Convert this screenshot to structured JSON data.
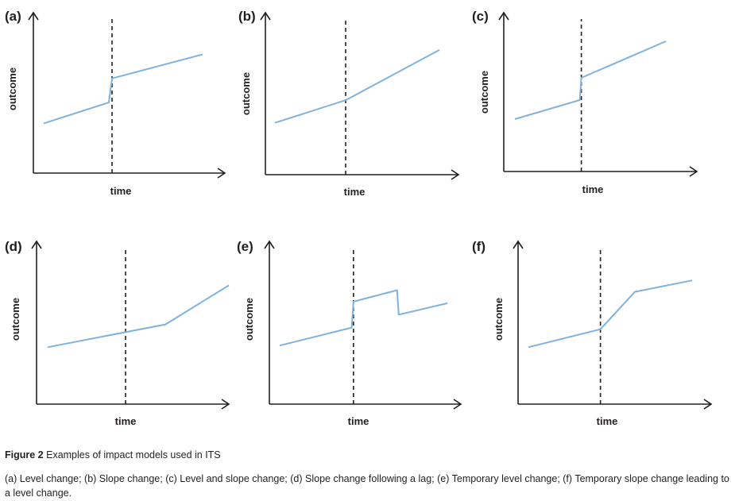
{
  "chart_data": [
    {
      "type": "line",
      "panel_label": "(a)",
      "xlabel": "time",
      "ylabel": "outcome",
      "x": [
        0,
        0.41,
        0.43,
        1
      ],
      "y": [
        0.31,
        0.44,
        0.59,
        0.74
      ],
      "intervention_x": 0.43,
      "xlim": [
        0,
        1
      ],
      "ylim": [
        0,
        1
      ],
      "grid": false
    },
    {
      "type": "line",
      "panel_label": "(b)",
      "xlabel": "time",
      "ylabel": "outcome",
      "x": [
        0,
        0.43,
        1
      ],
      "y": [
        0.32,
        0.46,
        0.77
      ],
      "intervention_x": 0.43,
      "xlim": [
        0,
        1
      ],
      "ylim": [
        0,
        1
      ],
      "grid": false
    },
    {
      "type": "line",
      "panel_label": "(c)",
      "xlabel": "time",
      "ylabel": "outcome",
      "x": [
        0,
        0.43,
        0.44,
        1
      ],
      "y": [
        0.33,
        0.45,
        0.59,
        0.82
      ],
      "intervention_x": 0.44,
      "xlim": [
        0,
        1
      ],
      "ylim": [
        0,
        1
      ],
      "grid": false
    },
    {
      "type": "line",
      "panel_label": "(d)",
      "xlabel": "time",
      "ylabel": "outcome",
      "x": [
        0,
        0.65,
        1
      ],
      "y": [
        0.35,
        0.49,
        0.73
      ],
      "intervention_x": 0.43,
      "xlim": [
        0,
        1
      ],
      "ylim": [
        0,
        1
      ],
      "grid": false
    },
    {
      "type": "line",
      "panel_label": "(e)",
      "xlabel": "time",
      "ylabel": "outcome",
      "x": [
        0,
        0.43,
        0.44,
        0.7,
        0.71,
        1
      ],
      "y": [
        0.36,
        0.47,
        0.63,
        0.7,
        0.55,
        0.62
      ],
      "intervention_x": 0.44,
      "xlim": [
        0,
        1
      ],
      "ylim": [
        0,
        1
      ],
      "grid": false
    },
    {
      "type": "line",
      "panel_label": "(f)",
      "xlabel": "time",
      "ylabel": "outcome",
      "x": [
        0,
        0.44,
        0.65,
        1
      ],
      "y": [
        0.35,
        0.46,
        0.69,
        0.76
      ],
      "intervention_x": 0.44,
      "xlim": [
        0,
        1
      ],
      "ylim": [
        0,
        1
      ],
      "grid": false
    }
  ],
  "caption": {
    "figure_number": "Figure 2",
    "title": "Examples of impact models used in ITS",
    "description": "(a) Level change; (b) Slope change; (c) Level and slope change; (d) Slope change following a lag; (e) Temporary level change; (f) Temporary slope change leading to a level change."
  },
  "colors": {
    "series": "#7fb2dc",
    "axes": "#231f20"
  }
}
